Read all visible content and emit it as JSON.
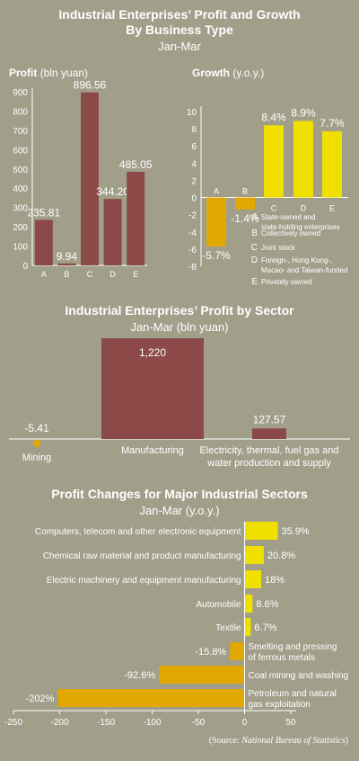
{
  "header": {
    "title_line1": "Industrial Enterprises’ Profit and Growth",
    "title_line2": "By Business Type",
    "period": "Jan-Mar"
  },
  "section2": {
    "title": "Industrial Enterprises’ Profit by Sector",
    "subtitle": "Jan-Mar (bln yuan)"
  },
  "section3": {
    "title": "Profit Changes for Major Industrial Sectors",
    "subtitle": "Jan-Mar (y.o.y.)"
  },
  "source": {
    "prefix": "(Source: ",
    "name": "National Bureau of Statistics",
    "suffix": ")"
  },
  "colors": {
    "background": "#a19f8a",
    "bar_red": "#8b4a47",
    "bar_yellow": "#f0e000",
    "bar_orange": "#e0a800"
  },
  "chart_data": [
    {
      "type": "bar",
      "title": "Profit",
      "unit": "(bln yuan)",
      "categories": [
        "A",
        "B",
        "C",
        "D",
        "E"
      ],
      "values": [
        235.81,
        9.94,
        896.56,
        344.2,
        485.05
      ],
      "labels": [
        "235.81",
        "9.94",
        "896.56",
        "344.20",
        "485.05"
      ],
      "yticks": [
        0,
        100,
        200,
        300,
        400,
        500,
        600,
        700,
        800,
        900
      ],
      "ylim": [
        0,
        900
      ],
      "grid": false
    },
    {
      "type": "bar",
      "title": "Growth",
      "unit": "(y.o.y.)",
      "categories": [
        "A",
        "B",
        "C",
        "D",
        "E"
      ],
      "values": [
        -5.7,
        -1.4,
        8.4,
        8.9,
        7.7
      ],
      "labels": [
        "-5.7%",
        "-1.4%",
        "8.4%",
        "8.9%",
        "7.7%"
      ],
      "yticks": [
        10,
        8,
        6,
        4,
        2,
        0,
        -2,
        -4,
        -6,
        -8
      ],
      "ylim": [
        -8,
        10
      ],
      "legend": [
        {
          "key": "A",
          "lines": [
            "State-owned and",
            "state-holding enterprises"
          ]
        },
        {
          "key": "B",
          "lines": [
            "Collectively owned"
          ]
        },
        {
          "key": "C",
          "lines": [
            "Joint stock"
          ]
        },
        {
          "key": "D",
          "lines": [
            "Foreign-, Hong Kong-,",
            "Macao- and Taiwan-funded"
          ]
        },
        {
          "key": "E",
          "lines": [
            "Privately owned"
          ]
        }
      ]
    },
    {
      "type": "bar",
      "categories": [
        "Mining",
        "Manufacturing",
        "Electricity, thermal, fuel gas and water production and supply"
      ],
      "category_lines": [
        [
          "Mining"
        ],
        [
          "Manufacturing"
        ],
        [
          "Electricity, thermal, fuel gas and",
          "water production and supply"
        ]
      ],
      "values": [
        -5.41,
        1220,
        127.57
      ],
      "labels": [
        "-5.41",
        "1,220",
        "127.57"
      ]
    },
    {
      "type": "bar",
      "orientation": "horizontal",
      "categories": [
        "Computers, telecom and other electronic equipment",
        "Chemical raw material and product manufacturing",
        "Electric machinery and equipment manufacturing",
        "Automobile",
        "Textile",
        "Smelting and pressing of ferrous metals",
        "Coal mining and washing",
        "Petroleum and natural gas exploitation"
      ],
      "category_lines": [
        [
          "Computers, telecom and other electronic equipment"
        ],
        [
          "Chemical raw material and product manufacturing"
        ],
        [
          "Electric machinery and equipment manufacturing"
        ],
        [
          "Automobile"
        ],
        [
          "Textile"
        ],
        [
          "Smelting and pressing",
          "of ferrous metals"
        ],
        [
          "Coal mining and washing"
        ],
        [
          "Petroleum and natural",
          "gas exploitation"
        ]
      ],
      "values": [
        35.9,
        20.8,
        18,
        8.6,
        6.7,
        -15.8,
        -92.6,
        -202
      ],
      "labels": [
        "35.9%",
        "20.8%",
        "18%",
        "8.6%",
        "6.7%",
        "-15.8%",
        "-92.6%",
        "-202%"
      ],
      "xticks": [
        -250,
        -200,
        -150,
        -100,
        -50,
        0,
        50
      ],
      "xlim": [
        -250,
        50
      ]
    }
  ]
}
